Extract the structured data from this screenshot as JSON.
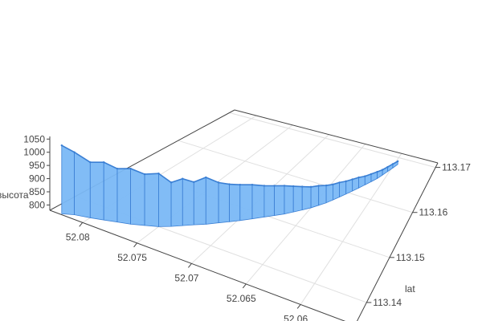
{
  "chart_data": {
    "type": "3d-surface-ribbon",
    "title": "",
    "x_axis": {
      "label": "",
      "ticks": [
        "52.08",
        "52.075",
        "52.07",
        "52.065",
        "52.06"
      ],
      "range": [
        52.055,
        52.083
      ]
    },
    "y_axis": {
      "label": "lat",
      "ticks": [
        "113.14",
        "113.15",
        "113.16",
        "113.17"
      ],
      "range": [
        113.135,
        113.171
      ]
    },
    "z_axis": {
      "label": "высота",
      "ticks": [
        "800",
        "850",
        "900",
        "950",
        "1000",
        "1050"
      ],
      "range": [
        780,
        1060
      ]
    },
    "series": [
      {
        "color": "#7ab8f5",
        "edge_color": "#3a7fd4",
        "points": [
          {
            "x": 52.082,
            "y": 113.1352,
            "z": 1040
          },
          {
            "x": 52.0812,
            "y": 113.136,
            "z": 1020
          },
          {
            "x": 52.08,
            "y": 113.1366,
            "z": 995
          },
          {
            "x": 52.079,
            "y": 113.1372,
            "z": 1005
          },
          {
            "x": 52.078,
            "y": 113.1378,
            "z": 990
          },
          {
            "x": 52.077,
            "y": 113.1384,
            "z": 1000
          },
          {
            "x": 52.076,
            "y": 113.1392,
            "z": 985
          },
          {
            "x": 52.075,
            "y": 113.14,
            "z": 995
          },
          {
            "x": 52.0742,
            "y": 113.141,
            "z": 960
          },
          {
            "x": 52.0735,
            "y": 113.142,
            "z": 975
          },
          {
            "x": 52.0728,
            "y": 113.143,
            "z": 960
          },
          {
            "x": 52.072,
            "y": 113.144,
            "z": 980
          },
          {
            "x": 52.0712,
            "y": 113.1452,
            "z": 955
          },
          {
            "x": 52.0705,
            "y": 113.1462,
            "z": 945
          },
          {
            "x": 52.0698,
            "y": 113.1472,
            "z": 940
          },
          {
            "x": 52.069,
            "y": 113.1484,
            "z": 935
          },
          {
            "x": 52.0682,
            "y": 113.1496,
            "z": 925
          },
          {
            "x": 52.0675,
            "y": 113.1506,
            "z": 920
          },
          {
            "x": 52.0668,
            "y": 113.1516,
            "z": 915
          },
          {
            "x": 52.0662,
            "y": 113.1526,
            "z": 905
          },
          {
            "x": 52.0656,
            "y": 113.1536,
            "z": 895
          },
          {
            "x": 52.065,
            "y": 113.1546,
            "z": 885
          },
          {
            "x": 52.0645,
            "y": 113.1556,
            "z": 880
          },
          {
            "x": 52.064,
            "y": 113.1566,
            "z": 870
          },
          {
            "x": 52.0636,
            "y": 113.1576,
            "z": 862
          },
          {
            "x": 52.0632,
            "y": 113.1586,
            "z": 858
          },
          {
            "x": 52.0628,
            "y": 113.1596,
            "z": 850
          },
          {
            "x": 52.0624,
            "y": 113.1606,
            "z": 845
          },
          {
            "x": 52.062,
            "y": 113.1616,
            "z": 840
          },
          {
            "x": 52.0616,
            "y": 113.1626,
            "z": 830
          },
          {
            "x": 52.0612,
            "y": 113.1636,
            "z": 825
          },
          {
            "x": 52.0608,
            "y": 113.1646,
            "z": 820
          },
          {
            "x": 52.0605,
            "y": 113.1656,
            "z": 812
          },
          {
            "x": 52.0602,
            "y": 113.1666,
            "z": 808
          },
          {
            "x": 52.0599,
            "y": 113.1676,
            "z": 805
          },
          {
            "x": 52.0596,
            "y": 113.1686,
            "z": 800
          }
        ]
      }
    ]
  }
}
